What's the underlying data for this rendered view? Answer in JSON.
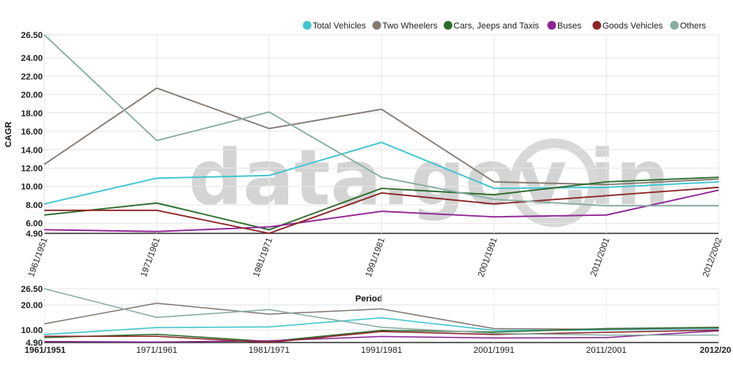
{
  "watermark": "data.gov.in",
  "chart_data": {
    "type": "line",
    "xlabel": "Period",
    "ylabel": "CAGR",
    "ylim": [
      4.9,
      26.5
    ],
    "yticks": [
      "26.50",
      "24.00",
      "22.00",
      "20.00",
      "18.00",
      "16.00",
      "14.00",
      "12.00",
      "10.00",
      "8.00",
      "6.00",
      "4.90"
    ],
    "context_yticks": [
      "26.50",
      "20.00",
      "10.00",
      "4.90"
    ],
    "categories": [
      "1961/1951",
      "1971/1961",
      "1981/1971",
      "1991/1981",
      "2001/1991",
      "2011/2001",
      "2012/2002"
    ],
    "context_tick_labels": [
      "1961/1951",
      "1971/1961",
      "1981/1971",
      "1991/1981",
      "2001/1991",
      "2011/2001",
      "2012/20"
    ],
    "legend_position": "top-right",
    "grid": true,
    "series": [
      {
        "name": "Total Vehicles",
        "color": "#3ec5cf",
        "values": [
          8.1,
          10.9,
          11.2,
          14.8,
          9.8,
          9.9,
          10.5
        ]
      },
      {
        "name": "Two Wheelers",
        "color": "#857b73",
        "values": [
          12.4,
          20.7,
          16.3,
          18.4,
          10.5,
          10.2,
          10.8
        ]
      },
      {
        "name": "Cars, Jeeps and Taxis",
        "color": "#2e6b2e",
        "values": [
          6.9,
          8.2,
          5.3,
          9.8,
          9.1,
          10.5,
          11.0
        ]
      },
      {
        "name": "Buses",
        "color": "#8e2495",
        "values": [
          5.3,
          5.1,
          5.6,
          7.3,
          6.7,
          6.9,
          9.6
        ]
      },
      {
        "name": "Goods Vehicles",
        "color": "#8c2525",
        "values": [
          7.4,
          7.4,
          4.9,
          9.3,
          8.1,
          9.0,
          9.9
        ]
      },
      {
        "name": "Others",
        "color": "#88ada3",
        "values": [
          26.5,
          15.0,
          18.1,
          11.0,
          8.6,
          7.9,
          7.9
        ]
      }
    ]
  }
}
